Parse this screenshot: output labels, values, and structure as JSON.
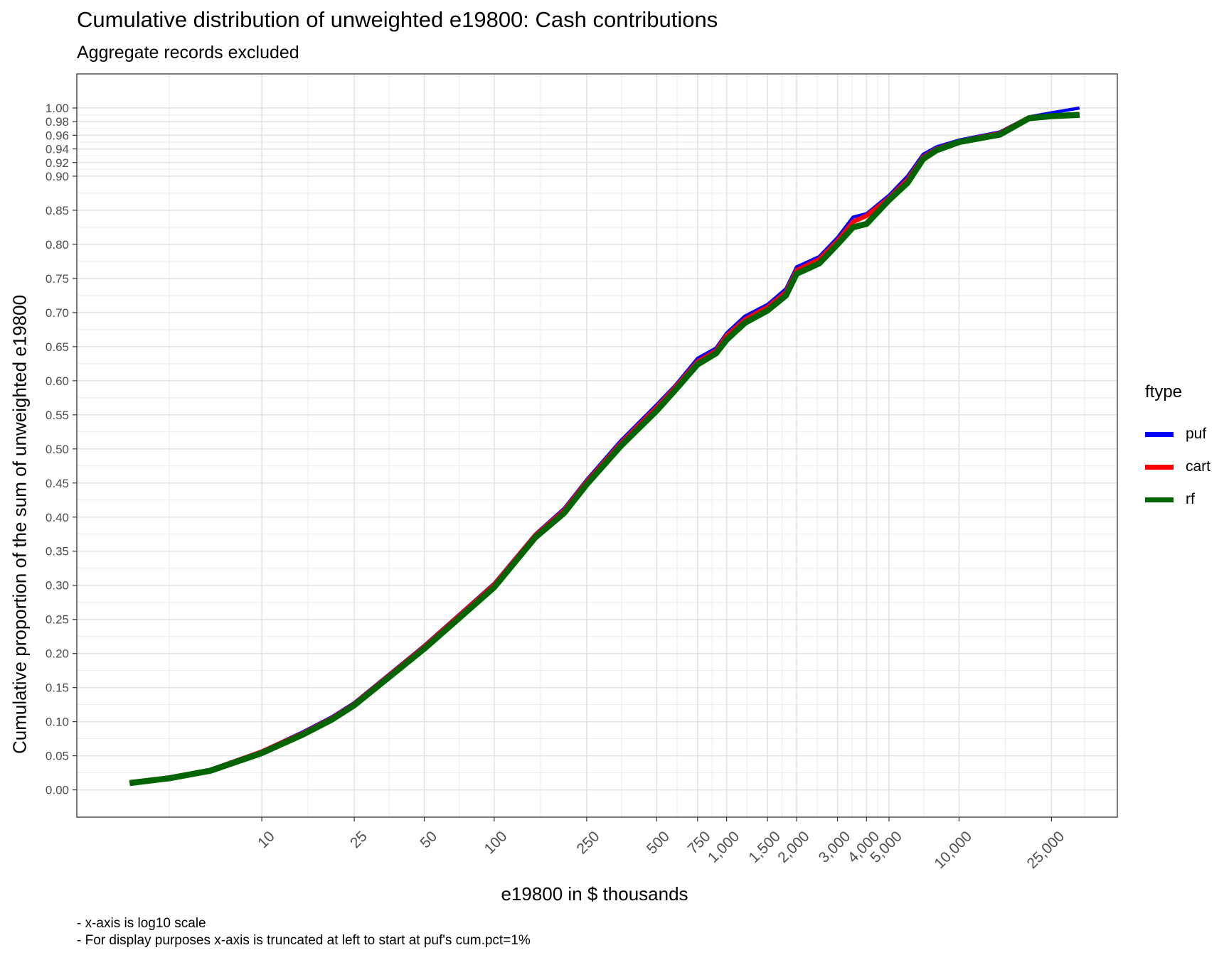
{
  "chart_data": {
    "type": "line",
    "title": "Cumulative distribution of unweighted e19800: Cash contributions",
    "subtitle": "Aggregate records excluded",
    "xlabel": "e19800 in $ thousands",
    "ylabel": "Cumulative proportion of the sum of unweighted e19800",
    "x_scale": "log10",
    "xlim": [
      1.6,
      48000
    ],
    "ylim": [
      -0.04,
      1.05
    ],
    "grid": true,
    "x_ticks": [
      10,
      25,
      50,
      100,
      250,
      500,
      750,
      1000,
      1500,
      2000,
      3000,
      4000,
      5000,
      10000,
      25000
    ],
    "x_tick_labels": [
      "10",
      "25",
      "50",
      "100",
      "250",
      "500",
      "750",
      "1,000",
      "1,500",
      "2,000",
      "3,000",
      "4,000",
      "5,000",
      "10,000",
      "25,000"
    ],
    "y_ticks": [
      0,
      0.05,
      0.1,
      0.15,
      0.2,
      0.25,
      0.3,
      0.35,
      0.4,
      0.45,
      0.5,
      0.55,
      0.6,
      0.65,
      0.7,
      0.75,
      0.8,
      0.85,
      0.9,
      0.92,
      0.94,
      0.96,
      0.98,
      1.0
    ],
    "y_tick_labels": [
      "0.00",
      "0.05",
      "0.10",
      "0.15",
      "0.20",
      "0.25",
      "0.30",
      "0.35",
      "0.40",
      "0.45",
      "0.50",
      "0.55",
      "0.60",
      "0.65",
      "0.70",
      "0.75",
      "0.80",
      "0.85",
      "0.90",
      "0.92",
      "0.94",
      "0.96",
      "0.98",
      "1.00"
    ],
    "legend_title": "ftype",
    "legend_position": "right",
    "series": [
      {
        "name": "puf",
        "color": "#0000FF",
        "points": [
          [
            2.7,
            0.01
          ],
          [
            4,
            0.018
          ],
          [
            6,
            0.03
          ],
          [
            10,
            0.057
          ],
          [
            15,
            0.085
          ],
          [
            20,
            0.107
          ],
          [
            25,
            0.128
          ],
          [
            50,
            0.212
          ],
          [
            100,
            0.303
          ],
          [
            150,
            0.375
          ],
          [
            200,
            0.413
          ],
          [
            250,
            0.455
          ],
          [
            350,
            0.512
          ],
          [
            500,
            0.565
          ],
          [
            600,
            0.593
          ],
          [
            750,
            0.633
          ],
          [
            900,
            0.648
          ],
          [
            1000,
            0.67
          ],
          [
            1200,
            0.695
          ],
          [
            1500,
            0.712
          ],
          [
            1800,
            0.735
          ],
          [
            2000,
            0.767
          ],
          [
            2500,
            0.782
          ],
          [
            3000,
            0.81
          ],
          [
            3500,
            0.84
          ],
          [
            4000,
            0.845
          ],
          [
            5000,
            0.872
          ],
          [
            6000,
            0.9
          ],
          [
            7000,
            0.932
          ],
          [
            8000,
            0.943
          ],
          [
            10000,
            0.953
          ],
          [
            15000,
            0.965
          ],
          [
            20000,
            0.987
          ],
          [
            25000,
            0.993
          ],
          [
            33000,
            1.0
          ]
        ]
      },
      {
        "name": "cart",
        "color": "#FF0000",
        "points": [
          [
            2.7,
            0.01
          ],
          [
            4,
            0.018
          ],
          [
            6,
            0.029
          ],
          [
            10,
            0.056
          ],
          [
            15,
            0.083
          ],
          [
            20,
            0.105
          ],
          [
            25,
            0.126
          ],
          [
            50,
            0.21
          ],
          [
            100,
            0.301
          ],
          [
            150,
            0.373
          ],
          [
            200,
            0.41
          ],
          [
            250,
            0.452
          ],
          [
            350,
            0.508
          ],
          [
            500,
            0.561
          ],
          [
            600,
            0.59
          ],
          [
            750,
            0.628
          ],
          [
            900,
            0.644
          ],
          [
            1000,
            0.666
          ],
          [
            1200,
            0.69
          ],
          [
            1500,
            0.708
          ],
          [
            1800,
            0.73
          ],
          [
            2000,
            0.762
          ],
          [
            2500,
            0.778
          ],
          [
            3000,
            0.805
          ],
          [
            3500,
            0.833
          ],
          [
            4000,
            0.842
          ],
          [
            5000,
            0.868
          ],
          [
            6000,
            0.895
          ],
          [
            7000,
            0.928
          ],
          [
            8000,
            0.94
          ],
          [
            10000,
            0.951
          ],
          [
            15000,
            0.963
          ],
          [
            20000,
            0.986
          ],
          [
            25000,
            0.988
          ],
          [
            33000,
            0.99
          ]
        ]
      },
      {
        "name": "rf",
        "color": "#006400",
        "points": [
          [
            2.7,
            0.01
          ],
          [
            4,
            0.017
          ],
          [
            6,
            0.028
          ],
          [
            10,
            0.054
          ],
          [
            15,
            0.081
          ],
          [
            20,
            0.103
          ],
          [
            25,
            0.124
          ],
          [
            50,
            0.207
          ],
          [
            100,
            0.297
          ],
          [
            150,
            0.37
          ],
          [
            200,
            0.406
          ],
          [
            250,
            0.448
          ],
          [
            350,
            0.504
          ],
          [
            500,
            0.556
          ],
          [
            600,
            0.586
          ],
          [
            750,
            0.624
          ],
          [
            900,
            0.64
          ],
          [
            1000,
            0.66
          ],
          [
            1200,
            0.685
          ],
          [
            1500,
            0.703
          ],
          [
            1800,
            0.725
          ],
          [
            2000,
            0.757
          ],
          [
            2500,
            0.772
          ],
          [
            3000,
            0.8
          ],
          [
            3500,
            0.825
          ],
          [
            4000,
            0.83
          ],
          [
            5000,
            0.865
          ],
          [
            6000,
            0.89
          ],
          [
            7000,
            0.925
          ],
          [
            8000,
            0.938
          ],
          [
            10000,
            0.95
          ],
          [
            15000,
            0.961
          ],
          [
            20000,
            0.985
          ],
          [
            25000,
            0.988
          ],
          [
            33000,
            0.99
          ]
        ]
      }
    ],
    "annotations": [
      "- x-axis is log10 scale",
      "- For display purposes x-axis is truncated at left to start at puf's cum.pct=1%"
    ]
  }
}
